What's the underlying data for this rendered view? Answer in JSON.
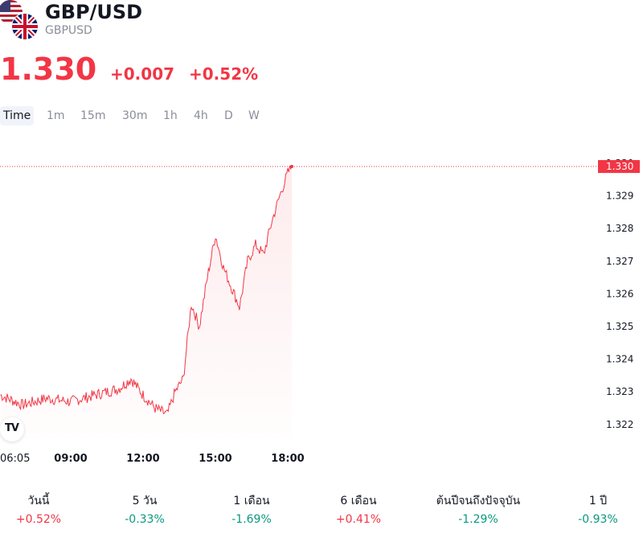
{
  "header": {
    "symbol": "GBP/USD",
    "symbol_code": "GBPUSD",
    "flag_back": "us-flag-icon",
    "flag_front": "uk-flag-icon"
  },
  "quote": {
    "price": "1.330",
    "change": "+0.007",
    "change_pct": "+0.52%",
    "color": "#f23645"
  },
  "tabs": [
    {
      "label": "Time",
      "active": true
    },
    {
      "label": "1m",
      "active": false
    },
    {
      "label": "15m",
      "active": false
    },
    {
      "label": "30m",
      "active": false
    },
    {
      "label": "1h",
      "active": false
    },
    {
      "label": "4h",
      "active": false
    },
    {
      "label": "D",
      "active": false
    },
    {
      "label": "W",
      "active": false
    }
  ],
  "chart_data": {
    "type": "area",
    "series": [
      {
        "x": [
          "06:05",
          "07:00",
          "08:00",
          "09:00",
          "10:00",
          "11:00",
          "11:30",
          "12:00",
          "12:30",
          "13:00",
          "13:20",
          "13:40",
          "14:00",
          "14:20",
          "14:40",
          "15:00",
          "15:20",
          "15:40",
          "16:00",
          "16:20",
          "16:40",
          "17:00",
          "17:20",
          "17:40",
          "18:00",
          "18:10"
        ],
        "values": [
          1.3229,
          1.3226,
          1.3228,
          1.3227,
          1.3229,
          1.3231,
          1.3234,
          1.3229,
          1.3225,
          1.3223,
          1.323,
          1.3234,
          1.3257,
          1.325,
          1.3265,
          1.3278,
          1.3268,
          1.3262,
          1.3256,
          1.327,
          1.3275,
          1.3272,
          1.3282,
          1.329,
          1.3297,
          1.3299
        ]
      }
    ],
    "y_ticks": [
      "1.330",
      "1.329",
      "1.328",
      "1.327",
      "1.326",
      "1.325",
      "1.324",
      "1.323",
      "1.322"
    ],
    "x_ticks": [
      "06:05",
      "09:00",
      "12:00",
      "15:00",
      "18:00"
    ],
    "ylim": [
      1.3218,
      1.3302
    ],
    "last_price_label": "1.330",
    "line_color": "#f23645",
    "grid": false
  },
  "performance": [
    {
      "label": "วันนี้",
      "value": "+0.52%",
      "sign": "pos"
    },
    {
      "label": "5 วัน",
      "value": "-0.33%",
      "sign": "neg"
    },
    {
      "label": "1 เดือน",
      "value": "-1.69%",
      "sign": "neg"
    },
    {
      "label": "6 เดือน",
      "value": "+0.41%",
      "sign": "pos"
    },
    {
      "label": "ต้นปีจนถึงปัจจุบัน",
      "value": "-1.29%",
      "sign": "neg"
    },
    {
      "label": "1 ปี",
      "value": "-0.93%",
      "sign": "neg"
    }
  ]
}
